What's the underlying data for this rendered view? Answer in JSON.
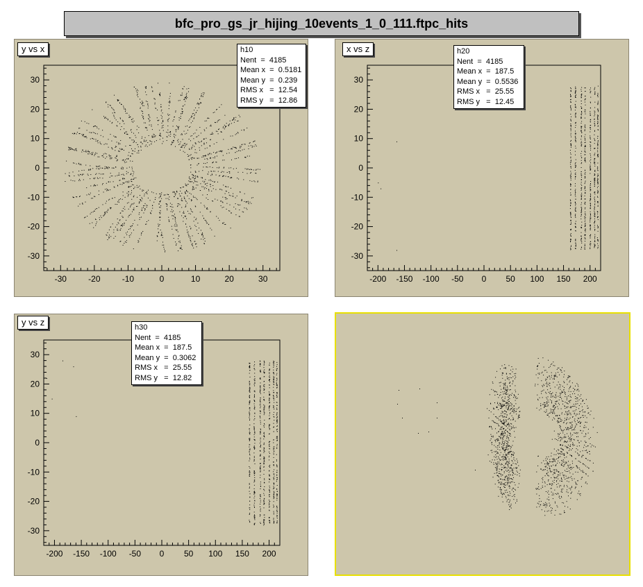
{
  "canvas_title": "bfc_pro_gs_jr_hijing_10events_1_0_111.ftpc_hits",
  "pads": [
    {
      "label": "y vs x",
      "stats": {
        "name": "h10",
        "rows": [
          "Nent  =  4185",
          "Mean x  =  0.5181",
          "Mean y  =  0.239",
          "RMS x   =  12.54",
          "RMS y   =  12.86"
        ]
      }
    },
    {
      "label": "x vs z",
      "stats": {
        "name": "h20",
        "rows": [
          "Nent  =  4185",
          "Mean x  =  187.5",
          "Mean y  =  0.5536",
          "RMS x   =  25.55",
          "RMS y   =  12.45"
        ]
      }
    },
    {
      "label": "y vs z",
      "stats": {
        "name": "h30",
        "rows": [
          "Nent  =  4185",
          "Mean x  =  187.5",
          "Mean y  =  0.3062",
          "RMS x   =  25.55",
          "RMS y   =  12.82"
        ]
      }
    },
    {
      "label": "",
      "stats": null
    }
  ],
  "colors": {
    "pad_bg": "#cdc6ab",
    "marker": "#000000",
    "selected_border": "#e8e000"
  },
  "chart_data": [
    {
      "type": "scatter",
      "title": "y vs x",
      "xlim": [
        -35,
        35
      ],
      "ylim": [
        -35,
        35
      ],
      "xticks": [
        -30,
        -20,
        -10,
        0,
        10,
        20,
        30
      ],
      "yticks": [
        -30,
        -20,
        -10,
        0,
        10,
        20,
        30
      ],
      "distribution": "radial rays from inner radius ~8.5 to outer radius ~29 around origin",
      "stats": {
        "entries": 4185,
        "mean_x": 0.5181,
        "mean_y": 0.239,
        "rms_x": 12.54,
        "rms_y": 12.86
      }
    },
    {
      "type": "scatter",
      "title": "x vs z",
      "xlim": [
        -220,
        220
      ],
      "ylim": [
        -35,
        35
      ],
      "xticks": [
        -200,
        -150,
        -100,
        -50,
        0,
        50,
        100,
        150,
        200
      ],
      "yticks": [
        -30,
        -20,
        -10,
        0,
        10,
        20,
        30
      ],
      "z_planes": [
        163,
        172,
        183,
        190,
        200,
        208,
        214
      ],
      "stats": {
        "entries": 4185,
        "mean_x": 187.5,
        "mean_y": 0.5536,
        "rms_x": 25.55,
        "rms_y": 12.45
      }
    },
    {
      "type": "scatter",
      "title": "y vs z",
      "xlim": [
        -220,
        220
      ],
      "ylim": [
        -35,
        35
      ],
      "xticks": [
        -200,
        -150,
        -100,
        -50,
        0,
        50,
        100,
        150,
        200
      ],
      "yticks": [
        -30,
        -20,
        -10,
        0,
        10,
        20,
        30
      ],
      "z_planes": [
        163,
        172,
        183,
        190,
        200,
        208,
        214
      ],
      "stats": {
        "entries": 4185,
        "mean_x": 187.5,
        "mean_y": 0.3062,
        "rms_x": 25.55,
        "rms_y": 12.82
      }
    },
    {
      "type": "scatter",
      "title": "",
      "view": "3D perspective, no axes"
    }
  ]
}
